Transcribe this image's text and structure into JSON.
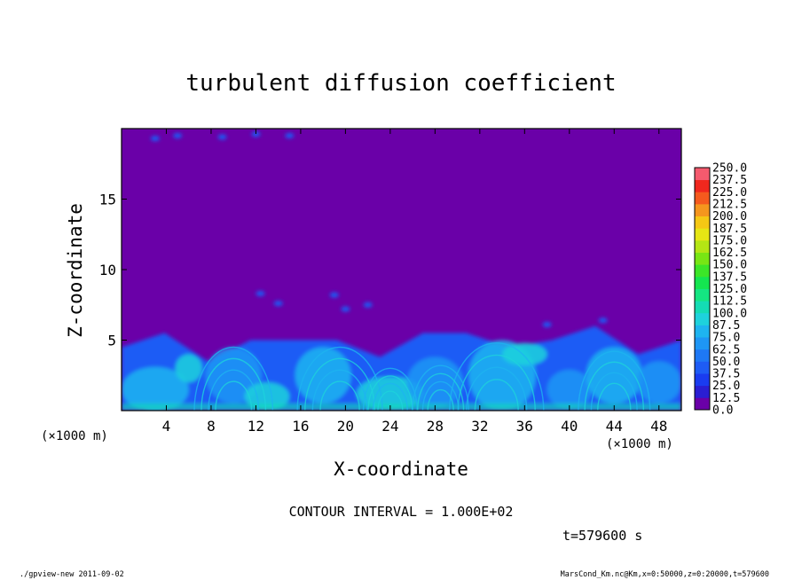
{
  "chart_data": {
    "type": "heatmap",
    "title": "turbulent diffusion coefficient",
    "xlabel": "X-coordinate",
    "ylabel": "Z-coordinate",
    "x_unit": "(×1000 m)",
    "y_unit": "(×1000 m)",
    "xlim": [
      0,
      50
    ],
    "ylim": [
      0,
      20
    ],
    "x_ticks": [
      4,
      8,
      12,
      16,
      20,
      24,
      28,
      32,
      36,
      40,
      44,
      48
    ],
    "y_ticks": [
      5,
      10,
      15
    ],
    "colorbar": {
      "levels": [
        0.0,
        12.5,
        25.0,
        37.5,
        50.0,
        62.5,
        75.0,
        87.5,
        100.0,
        112.5,
        125.0,
        137.5,
        150.0,
        162.5,
        175.0,
        187.5,
        200.0,
        212.5,
        225.0,
        237.5,
        250.0
      ],
      "labels": [
        "0.0",
        "12.5",
        "25.0",
        "37.5",
        "50.0",
        "62.5",
        "75.0",
        "87.5",
        "100.0",
        "112.5",
        "125.0",
        "137.5",
        "150.0",
        "162.5",
        "175.0",
        "187.5",
        "200.0",
        "212.5",
        "225.0",
        "237.5",
        "250.0"
      ],
      "colors": [
        "#6a00a8",
        "#2a1ed2",
        "#1a3cf0",
        "#1e5cf5",
        "#1e78f5",
        "#1e96f5",
        "#1eb4f0",
        "#1ed2dc",
        "#14dcb4",
        "#14e682",
        "#14e650",
        "#3ce628",
        "#78e614",
        "#b4e614",
        "#e6e614",
        "#f5c814",
        "#f5961e",
        "#f55a1e",
        "#f0281e",
        "#f55a6e"
      ]
    },
    "field_description_values": {
      "background_value": 0.0,
      "boundary_layer_top_km": [
        4.5,
        5.5,
        3.5,
        5.0,
        5.0,
        5.0,
        3.8,
        5.5,
        5.5,
        4.5,
        5.0,
        6.0,
        4.0,
        5.0
      ]
    },
    "contour_interval": "CONTOUR INTERVAL = 1.000E+02",
    "time": "t=579600 s"
  },
  "footer": {
    "left": "./gpview-new   2011-09-02",
    "right": "MarsCond_Km.nc@Km,x=0:50000,z=0:20000,t=579600"
  },
  "colors": {
    "background_field": "#6a00a8",
    "frame": "#000000"
  }
}
